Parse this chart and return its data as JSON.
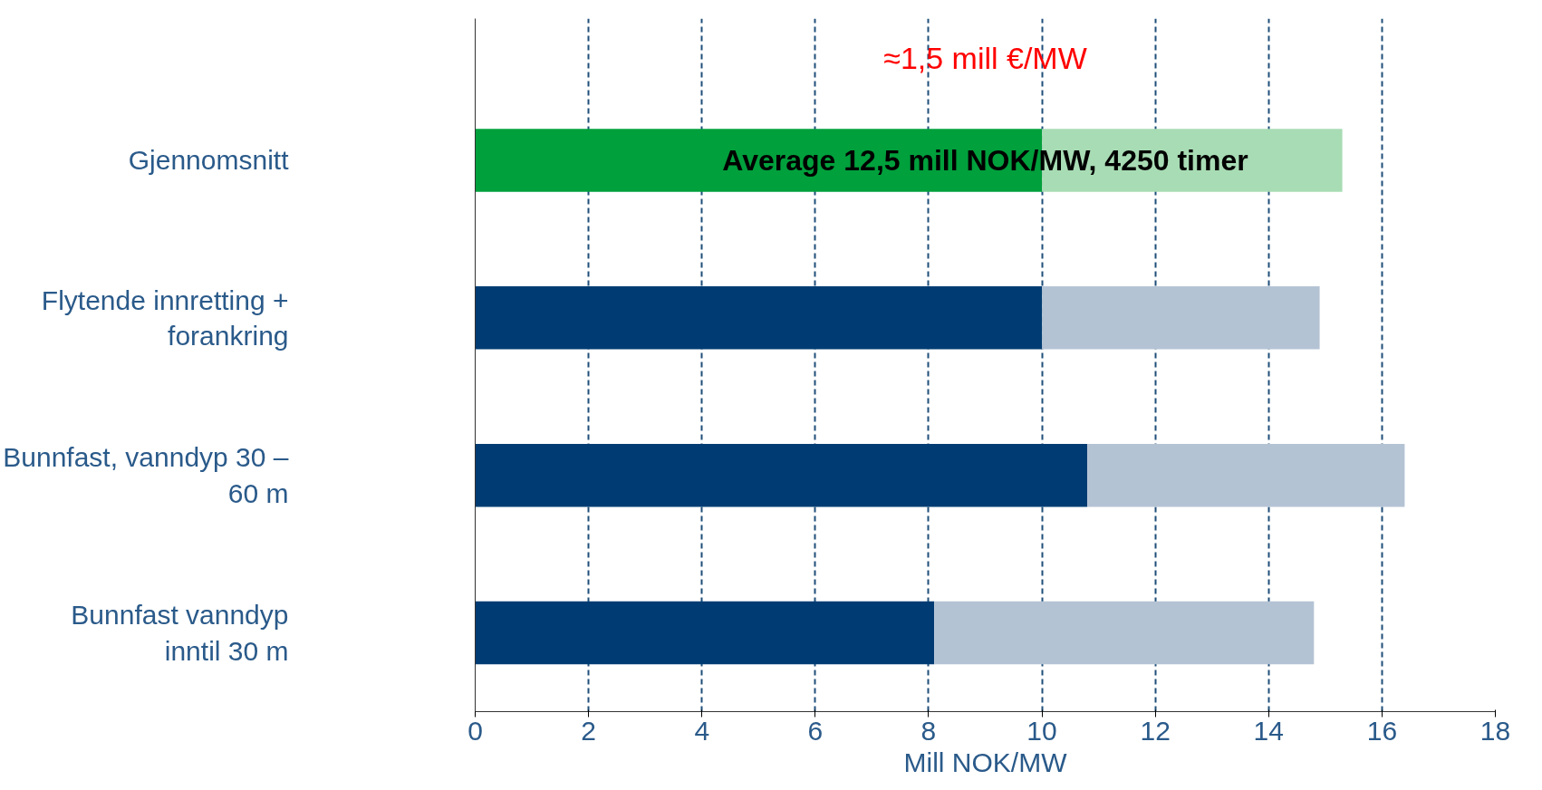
{
  "chart_data": {
    "type": "bar",
    "orientation": "horizontal",
    "stacked": true,
    "categories": [
      "Gjennomsnitt",
      "Flytende innretting + forankring",
      "Bunnfast, vanndyp 30 – 60 m",
      "Bunnfast vanndyp inntil 30 m"
    ],
    "series": [
      {
        "colors": [
          "#00a03c",
          "#003c73",
          "#003c73",
          "#003c73"
        ],
        "values": [
          10,
          10,
          10.8,
          8.1
        ]
      },
      {
        "colors": [
          "#a8dcb4",
          "#b4c3d4",
          "#b4c3d4",
          "#b4c3d4"
        ],
        "values": [
          5.3,
          4.9,
          5.6,
          6.7
        ]
      }
    ],
    "xlim": [
      0,
      18
    ],
    "xticks": [
      0,
      2,
      4,
      6,
      8,
      10,
      12,
      14,
      16,
      18
    ],
    "xlabel": "Mill NOK/MW",
    "grid": "x",
    "annotations": [
      "≈1,5 mill €/MW",
      "Average 12,5 mill NOK/MW, 4250 timer"
    ]
  }
}
